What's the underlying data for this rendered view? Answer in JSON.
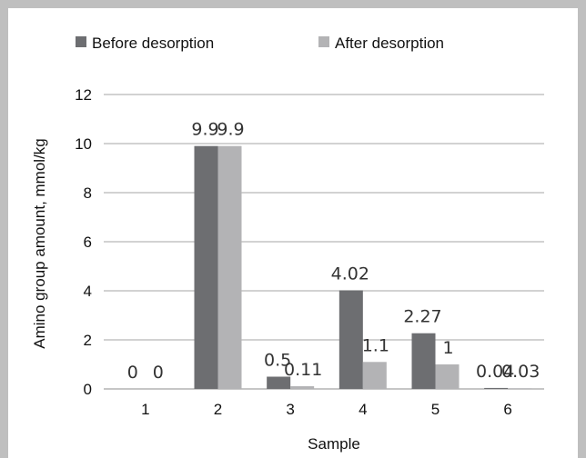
{
  "chart_data": {
    "type": "bar",
    "categories": [
      "1",
      "2",
      "3",
      "4",
      "5",
      "6"
    ],
    "series": [
      {
        "name": "Before desorption",
        "values": [
          0,
          9.9,
          0.5,
          4.02,
          2.27,
          0.04
        ],
        "labels": [
          "0",
          "9.9",
          "0.5",
          "4.02",
          "2.27",
          "0.04"
        ],
        "color": "#6d6e71"
      },
      {
        "name": "After desorption",
        "values": [
          0,
          9.9,
          0.11,
          1.1,
          1,
          0.03
        ],
        "labels": [
          "0",
          "9.9",
          "0.11",
          "1.1",
          "1",
          "0.03"
        ],
        "color": "#b3b3b5"
      }
    ],
    "xlabel": "Sample",
    "ylabel": "Amino group amount, mmol/kg",
    "ylim": [
      0,
      12
    ],
    "yticks": [
      "0",
      "2",
      "4",
      "6",
      "8",
      "10",
      "12"
    ],
    "grid": true,
    "legend_position": "top"
  }
}
